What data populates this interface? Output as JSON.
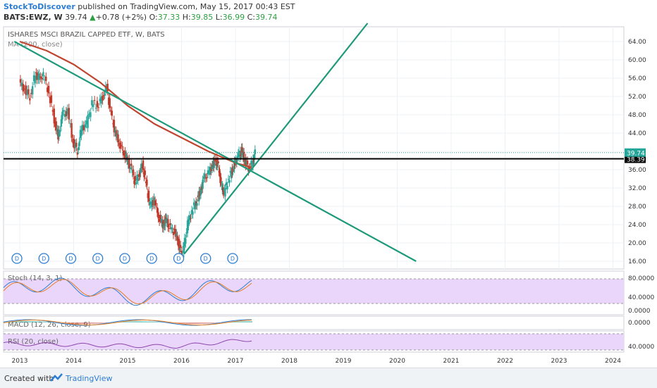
{
  "header": {
    "author": "StockToDiscover",
    "published_text": "published on TradingView.com, May 15, 2017 00:43 EST",
    "symbol": "BATS:EWZ, W",
    "last": "39.74",
    "change": "+0.78 (+2%)",
    "open_label": "O:",
    "open": "37.33",
    "high_label": "H:",
    "high": "39.85",
    "low_label": "L:",
    "low": "36.99",
    "close_label": "C:",
    "close": "39.74"
  },
  "footer": {
    "created_with": "Created with",
    "brand": "TradingView"
  },
  "chart_data": {
    "type": "candlestick",
    "title": "ISHARES MSCI BRAZIL CAPPED ETF, W, BATS",
    "ma_label": "MA (200, close)",
    "price_ticks": [
      16,
      20,
      24,
      28,
      32,
      36,
      40,
      44,
      48,
      52,
      56,
      60,
      64
    ],
    "price_tick_labels": [
      "16.00",
      "20.00",
      "24.00",
      "28.00",
      "32.00",
      "36.00",
      "40.00",
      "44.00",
      "48.00",
      "52.00",
      "56.00",
      "60.00",
      "64.00"
    ],
    "x_ticks": [
      "2013",
      "2014",
      "2015",
      "2016",
      "2017",
      "2018",
      "2019",
      "2020",
      "2021",
      "2022",
      "2023",
      "2024"
    ],
    "last_price_label": "39.74",
    "horizontal_line_label": "38.39",
    "horizontal_line": 38.39,
    "last_price": 39.74,
    "price_path": [
      [
        2013.0,
        55.2
      ],
      [
        2013.1,
        53.5
      ],
      [
        2013.2,
        52.0
      ],
      [
        2013.3,
        57.0
      ],
      [
        2013.35,
        56.0
      ],
      [
        2013.45,
        56.5
      ],
      [
        2013.55,
        52.8
      ],
      [
        2013.65,
        47.0
      ],
      [
        2013.72,
        43.0
      ],
      [
        2013.8,
        48.0
      ],
      [
        2013.9,
        48.6
      ],
      [
        2014.0,
        42.0
      ],
      [
        2014.08,
        40.2
      ],
      [
        2014.15,
        45.0
      ],
      [
        2014.25,
        46.0
      ],
      [
        2014.35,
        50.5
      ],
      [
        2014.45,
        50.0
      ],
      [
        2014.55,
        52.0
      ],
      [
        2014.62,
        54.0
      ],
      [
        2014.7,
        48.0
      ],
      [
        2014.78,
        44.0
      ],
      [
        2014.85,
        42.0
      ],
      [
        2014.93,
        40.0
      ],
      [
        2015.0,
        38.0
      ],
      [
        2015.08,
        36.0
      ],
      [
        2015.15,
        33.0
      ],
      [
        2015.22,
        35.0
      ],
      [
        2015.28,
        37.2
      ],
      [
        2015.35,
        33.0
      ],
      [
        2015.42,
        28.0
      ],
      [
        2015.5,
        29.5
      ],
      [
        2015.58,
        26.0
      ],
      [
        2015.66,
        24.0
      ],
      [
        2015.72,
        25.0
      ],
      [
        2015.8,
        23.0
      ],
      [
        2015.88,
        22.5
      ],
      [
        2015.95,
        20.0
      ],
      [
        2016.0,
        17.5
      ],
      [
        2016.05,
        19.0
      ],
      [
        2016.12,
        24.0
      ],
      [
        2016.2,
        27.0
      ],
      [
        2016.28,
        29.0
      ],
      [
        2016.35,
        31.0
      ],
      [
        2016.42,
        34.0
      ],
      [
        2016.5,
        35.0
      ],
      [
        2016.58,
        37.0
      ],
      [
        2016.65,
        38.0
      ],
      [
        2016.7,
        36.0
      ],
      [
        2016.75,
        32.0
      ],
      [
        2016.8,
        31.0
      ],
      [
        2016.88,
        34.0
      ],
      [
        2016.95,
        36.0
      ],
      [
        2017.0,
        37.5
      ],
      [
        2017.06,
        39.0
      ],
      [
        2017.12,
        40.0
      ],
      [
        2017.18,
        38.0
      ],
      [
        2017.25,
        36.5
      ],
      [
        2017.32,
        37.3
      ],
      [
        2017.37,
        39.74
      ]
    ],
    "ma_path": [
      [
        2013.0,
        64.0
      ],
      [
        2013.5,
        62.0
      ],
      [
        2014.0,
        59.0
      ],
      [
        2014.5,
        55.0
      ],
      [
        2015.0,
        50.0
      ],
      [
        2015.5,
        46.0
      ],
      [
        2016.0,
        43.0
      ],
      [
        2016.5,
        40.0
      ],
      [
        2017.0,
        37.5
      ],
      [
        2017.3,
        36.5
      ]
    ],
    "trendlines": [
      {
        "points": [
          [
            2012.9,
            64.0
          ],
          [
            2020.35,
            16.0
          ]
        ]
      },
      {
        "points": [
          [
            2016.05,
            17.6
          ],
          [
            2019.45,
            68.0
          ]
        ]
      }
    ],
    "dividends": [
      2013.0,
      2013.5,
      2014.0,
      2014.5,
      2015.0,
      2015.5,
      2016.0,
      2016.5,
      2017.0
    ],
    "dividend_marker": "D",
    "stoch": {
      "label": "Stoch (14, 3, 1)",
      "ticks": [
        "80.0000",
        "40.0000",
        "0.0000"
      ]
    },
    "macd": {
      "label": "MACD (12, 26, close, 9)",
      "ticks": [
        "0.0000"
      ]
    },
    "rsi": {
      "label": "RSI (20, close)",
      "ticks": [
        "40.0000"
      ]
    },
    "colors": {
      "up": "#26a69a",
      "down": "#c0392b",
      "ma": "#c0452f",
      "trend": "#1e9a7a",
      "indicator_bg": "#ead6fb",
      "author_blue": "#2d7dd2"
    }
  }
}
